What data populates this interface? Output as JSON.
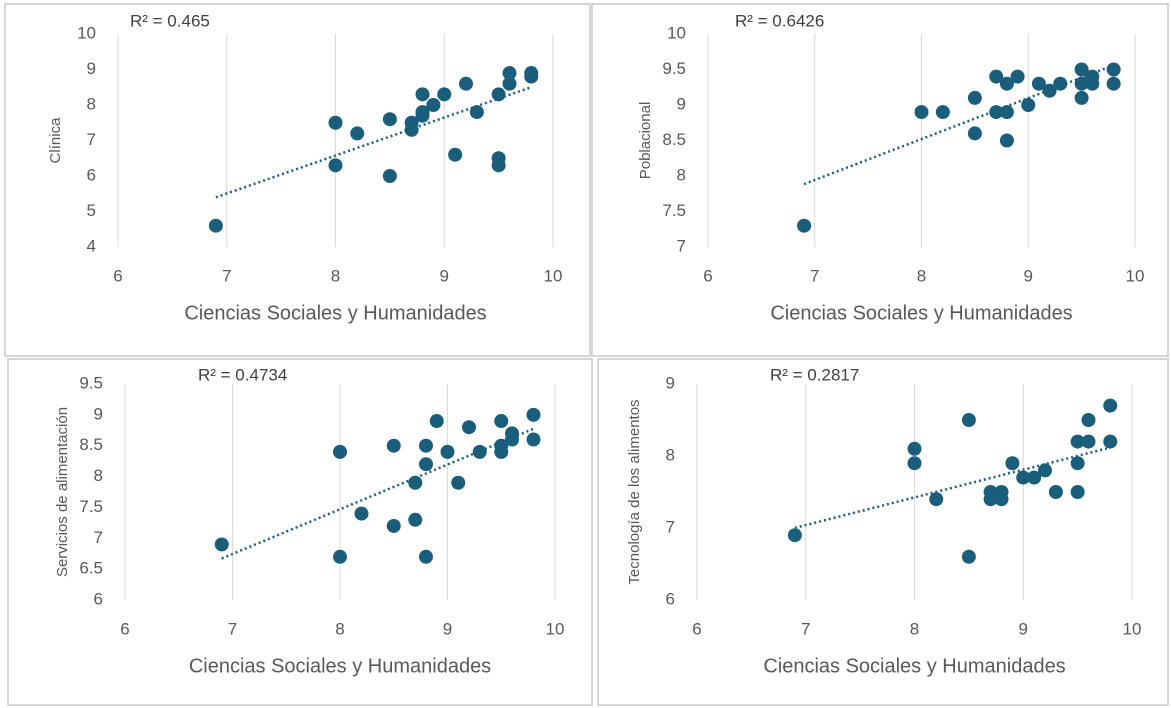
{
  "chart_data": [
    {
      "type": "scatter",
      "annotation": "R² = 0.465",
      "x_label": "Ciencias Sociales y Humanidades",
      "y_label": "Clínica",
      "color": "#1b5e7b",
      "trendline": true,
      "grid": "x",
      "xlim": [
        6,
        10
      ],
      "xticks": [
        6,
        7,
        8,
        9,
        10
      ],
      "ylim": [
        4,
        10
      ],
      "yticks": [
        4,
        5,
        6,
        7,
        8,
        9,
        10
      ],
      "x": [
        6.9,
        8.0,
        8.0,
        8.2,
        8.5,
        8.5,
        8.7,
        8.7,
        8.8,
        8.8,
        8.8,
        8.9,
        9.0,
        9.1,
        9.2,
        9.3,
        9.5,
        9.5,
        9.5,
        9.6,
        9.6,
        9.8,
        9.8
      ],
      "values": [
        4.6,
        7.5,
        6.3,
        7.2,
        6.0,
        7.6,
        7.5,
        7.3,
        8.3,
        7.8,
        7.7,
        8.0,
        8.3,
        6.6,
        8.6,
        7.8,
        8.3,
        6.5,
        6.3,
        8.6,
        8.9,
        8.9,
        8.8
      ]
    },
    {
      "type": "scatter",
      "annotation": "R² = 0.6426",
      "x_label": "Ciencias Sociales y Humanidades",
      "y_label": "Poblacional",
      "color": "#1b5e7b",
      "trendline": true,
      "grid": "x",
      "xlim": [
        6,
        10
      ],
      "xticks": [
        6,
        7,
        8,
        9,
        10
      ],
      "ylim": [
        7,
        10
      ],
      "yticks": [
        7,
        7.5,
        8,
        8.5,
        9,
        9.5,
        10
      ],
      "x": [
        6.9,
        8.0,
        8.2,
        8.5,
        8.5,
        8.7,
        8.7,
        8.8,
        8.8,
        8.8,
        8.9,
        9.0,
        9.1,
        9.2,
        9.3,
        9.5,
        9.5,
        9.5,
        9.6,
        9.6,
        9.8,
        9.8
      ],
      "values": [
        7.3,
        8.9,
        8.9,
        9.1,
        8.6,
        9.4,
        8.9,
        9.3,
        8.9,
        8.5,
        9.4,
        9.0,
        9.3,
        9.2,
        9.3,
        9.5,
        9.3,
        9.1,
        9.4,
        9.3,
        9.5,
        9.3
      ]
    },
    {
      "type": "scatter",
      "annotation": "R² = 0.4734",
      "x_label": "Ciencias Sociales y Humanidades",
      "y_label": "Servicios de alimentación",
      "color": "#1b5e7b",
      "trendline": true,
      "grid": "x",
      "xlim": [
        6,
        10
      ],
      "xticks": [
        6,
        7,
        8,
        9,
        10
      ],
      "ylim": [
        6,
        9.5
      ],
      "yticks": [
        6,
        6.5,
        7,
        7.5,
        8,
        8.5,
        9,
        9.5
      ],
      "x": [
        6.9,
        8.0,
        8.0,
        8.2,
        8.5,
        8.5,
        8.7,
        8.7,
        8.8,
        8.8,
        8.8,
        8.9,
        9.0,
        9.1,
        9.2,
        9.3,
        9.5,
        9.5,
        9.5,
        9.6,
        9.6,
        9.8,
        9.8
      ],
      "values": [
        6.9,
        8.4,
        6.7,
        7.4,
        8.5,
        7.2,
        7.9,
        7.3,
        8.5,
        8.2,
        6.7,
        8.9,
        8.4,
        7.9,
        8.8,
        8.4,
        8.9,
        8.5,
        8.4,
        8.7,
        8.6,
        9.0,
        8.6
      ]
    },
    {
      "type": "scatter",
      "annotation": "R² = 0.2817",
      "x_label": "Ciencias Sociales y Humanidades",
      "y_label": "Tecnología de los alimentos",
      "color": "#1b5e7b",
      "trendline": true,
      "grid": "x",
      "xlim": [
        6,
        10
      ],
      "xticks": [
        6,
        7,
        8,
        9,
        10
      ],
      "ylim": [
        6,
        9
      ],
      "yticks": [
        6,
        7,
        8,
        9
      ],
      "x": [
        6.9,
        8.0,
        8.0,
        8.2,
        8.5,
        8.5,
        8.7,
        8.7,
        8.8,
        8.8,
        8.9,
        9.0,
        9.1,
        9.2,
        9.3,
        9.5,
        9.5,
        9.5,
        9.6,
        9.6,
        9.8,
        9.8
      ],
      "values": [
        6.9,
        8.1,
        7.9,
        7.4,
        8.5,
        6.6,
        7.5,
        7.4,
        7.5,
        7.4,
        7.9,
        7.7,
        7.7,
        7.8,
        7.5,
        8.2,
        7.9,
        7.5,
        8.5,
        8.2,
        8.7,
        8.2
      ]
    }
  ]
}
